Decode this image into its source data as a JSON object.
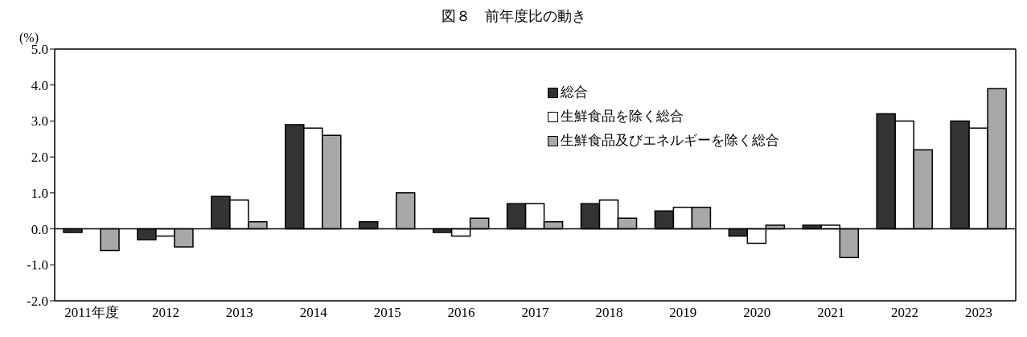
{
  "chart_data": {
    "type": "bar",
    "title": "図８　前年度比の動き",
    "ylabel": "(%)",
    "categories": [
      "2011年度",
      "2012",
      "2013",
      "2014",
      "2015",
      "2016",
      "2017",
      "2018",
      "2019",
      "2020",
      "2021",
      "2022",
      "2023"
    ],
    "series": [
      {
        "name": "総合",
        "color": "#333333",
        "values": [
          -0.1,
          -0.3,
          0.9,
          2.9,
          0.2,
          -0.1,
          0.7,
          0.7,
          0.5,
          -0.2,
          0.1,
          3.2,
          3.0
        ]
      },
      {
        "name": "生鮮食品を除く総合",
        "color": "#ffffff",
        "values": [
          0.0,
          -0.2,
          0.8,
          2.8,
          0.0,
          -0.2,
          0.7,
          0.8,
          0.6,
          -0.4,
          0.1,
          3.0,
          2.8
        ]
      },
      {
        "name": "生鮮食品及びエネルギーを除く総合",
        "color": "#a8a8a8",
        "values": [
          -0.6,
          -0.5,
          0.2,
          2.6,
          1.0,
          0.3,
          0.2,
          0.3,
          0.6,
          0.1,
          -0.8,
          2.2,
          3.9
        ]
      }
    ],
    "ylim": [
      -2.0,
      5.0
    ],
    "yticks": [
      {
        "value": -2,
        "label": "-2.0"
      },
      {
        "value": -1,
        "label": "-1.0"
      },
      {
        "value": 0,
        "label": "0.0"
      },
      {
        "value": 1,
        "label": "1.0"
      },
      {
        "value": 2,
        "label": "2.0"
      },
      {
        "value": 3,
        "label": "3.0"
      },
      {
        "value": 4,
        "label": "4.0"
      },
      {
        "value": 5,
        "label": "5.0"
      }
    ],
    "legend": "top"
  }
}
